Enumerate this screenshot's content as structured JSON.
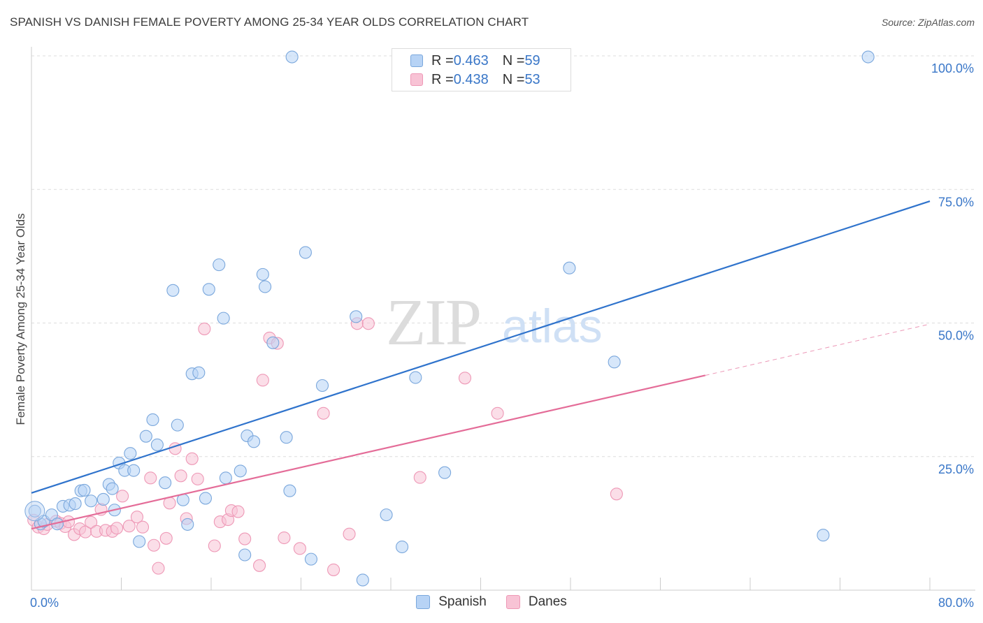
{
  "title": "SPANISH VS DANISH FEMALE POVERTY AMONG 25-34 YEAR OLDS CORRELATION CHART",
  "source": "Source: ZipAtlas.com",
  "watermark": {
    "zip": "ZIP",
    "atlas": "atlas"
  },
  "legend": {
    "spanish": {
      "r_label": "R = ",
      "r": "0.463",
      "n_label": "N = ",
      "n": "59"
    },
    "danes": {
      "r_label": "R = ",
      "r": "0.438",
      "n_label": "N = ",
      "n": "53"
    }
  },
  "colors": {
    "spanish_fill": "#b7d3f5",
    "spanish_stroke": "#7aa7dc",
    "spanish_line": "#2f73cc",
    "danes_fill": "#f8c3d5",
    "danes_stroke": "#ee98b6",
    "danes_line": "#e46c98",
    "axis_label": "#3a77c8"
  },
  "chart_data": {
    "type": "scatter",
    "title": "SPANISH VS DANISH FEMALE POVERTY AMONG 25-34 YEAR OLDS CORRELATION CHART",
    "ylabel": "Female Poverty Among 25-34 Year Olds",
    "xlabel": "",
    "xlim": [
      0,
      80
    ],
    "ylim": [
      0,
      100
    ],
    "x_tick_labels": [
      "0.0%",
      "80.0%"
    ],
    "y_tick_labels": [
      "100.0%",
      "75.0%",
      "50.0%",
      "25.0%"
    ],
    "y_ticks": [
      100,
      75,
      50,
      25
    ],
    "grid": true,
    "legend_position": "top-center",
    "series": [
      {
        "name": "Spanish",
        "r": 0.463,
        "n": 59,
        "trend": {
          "x": [
            0,
            80
          ],
          "y": [
            18.2,
            72.8
          ]
        },
        "points": [
          [
            0.3,
            14.8
          ],
          [
            0.8,
            12.4
          ],
          [
            1.1,
            12.9
          ],
          [
            1.8,
            14.1
          ],
          [
            2.3,
            12.4
          ],
          [
            2.8,
            15.7
          ],
          [
            3.4,
            15.9
          ],
          [
            3.9,
            16.2
          ],
          [
            4.4,
            18.6
          ],
          [
            4.7,
            18.7
          ],
          [
            5.3,
            16.7
          ],
          [
            6.4,
            17.0
          ],
          [
            6.9,
            19.8
          ],
          [
            7.2,
            19.0
          ],
          [
            7.4,
            15.0
          ],
          [
            7.8,
            23.8
          ],
          [
            8.3,
            22.4
          ],
          [
            8.8,
            25.6
          ],
          [
            9.1,
            22.4
          ],
          [
            9.6,
            9.1
          ],
          [
            10.2,
            28.8
          ],
          [
            10.8,
            31.9
          ],
          [
            11.2,
            27.2
          ],
          [
            11.9,
            20.1
          ],
          [
            12.6,
            56.1
          ],
          [
            13.0,
            30.9
          ],
          [
            13.5,
            16.9
          ],
          [
            13.9,
            12.3
          ],
          [
            14.3,
            40.5
          ],
          [
            14.9,
            40.7
          ],
          [
            15.5,
            17.2
          ],
          [
            15.8,
            56.3
          ],
          [
            16.7,
            60.9
          ],
          [
            17.1,
            50.9
          ],
          [
            17.3,
            21.0
          ],
          [
            18.6,
            22.3
          ],
          [
            19.0,
            6.6
          ],
          [
            19.2,
            28.9
          ],
          [
            19.8,
            27.8
          ],
          [
            20.6,
            59.1
          ],
          [
            20.8,
            56.8
          ],
          [
            21.5,
            46.3
          ],
          [
            22.7,
            28.6
          ],
          [
            23.0,
            18.6
          ],
          [
            23.2,
            99.8
          ],
          [
            24.4,
            63.2
          ],
          [
            24.9,
            5.8
          ],
          [
            25.9,
            38.3
          ],
          [
            28.9,
            51.2
          ],
          [
            29.5,
            1.9
          ],
          [
            31.6,
            14.1
          ],
          [
            33.0,
            8.1
          ],
          [
            34.2,
            39.8
          ],
          [
            36.8,
            22.0
          ],
          [
            47.3,
            99.8
          ],
          [
            47.9,
            60.3
          ],
          [
            51.9,
            42.7
          ],
          [
            70.5,
            10.3
          ],
          [
            74.5,
            99.8
          ]
        ]
      },
      {
        "name": "Danes",
        "r": 0.438,
        "n": 53,
        "trend": {
          "x": [
            0,
            60
          ],
          "y": [
            11.5,
            40.2
          ]
        },
        "trend_dashed": {
          "x": [
            60,
            80
          ],
          "y": [
            40.2,
            49.8
          ]
        },
        "points": [
          [
            0.2,
            13.1
          ],
          [
            0.6,
            11.8
          ],
          [
            1.1,
            11.5
          ],
          [
            1.4,
            12.3
          ],
          [
            2.2,
            12.9
          ],
          [
            2.6,
            12.5
          ],
          [
            3.0,
            11.9
          ],
          [
            3.3,
            12.8
          ],
          [
            3.8,
            10.4
          ],
          [
            4.3,
            11.5
          ],
          [
            4.8,
            10.9
          ],
          [
            5.3,
            12.7
          ],
          [
            5.8,
            11.0
          ],
          [
            6.2,
            15.1
          ],
          [
            6.6,
            11.2
          ],
          [
            7.2,
            11.0
          ],
          [
            7.6,
            11.6
          ],
          [
            8.1,
            17.6
          ],
          [
            8.7,
            12.0
          ],
          [
            9.4,
            13.7
          ],
          [
            9.9,
            11.8
          ],
          [
            10.6,
            21.0
          ],
          [
            10.9,
            8.4
          ],
          [
            11.3,
            4.1
          ],
          [
            12.0,
            9.7
          ],
          [
            12.3,
            16.3
          ],
          [
            12.8,
            26.5
          ],
          [
            13.3,
            21.4
          ],
          [
            13.8,
            13.4
          ],
          [
            14.3,
            24.6
          ],
          [
            14.8,
            20.8
          ],
          [
            15.4,
            48.9
          ],
          [
            16.3,
            8.3
          ],
          [
            16.8,
            12.8
          ],
          [
            17.5,
            13.2
          ],
          [
            17.8,
            14.9
          ],
          [
            18.4,
            14.7
          ],
          [
            19.0,
            9.6
          ],
          [
            20.3,
            4.6
          ],
          [
            20.6,
            39.3
          ],
          [
            21.2,
            47.2
          ],
          [
            21.9,
            46.2
          ],
          [
            22.5,
            9.8
          ],
          [
            23.9,
            7.8
          ],
          [
            26.0,
            33.1
          ],
          [
            26.9,
            3.8
          ],
          [
            28.3,
            10.5
          ],
          [
            29.0,
            49.9
          ],
          [
            30.0,
            49.9
          ],
          [
            34.6,
            21.1
          ],
          [
            38.6,
            39.7
          ],
          [
            41.5,
            33.1
          ],
          [
            52.1,
            18.0
          ]
        ]
      }
    ]
  }
}
